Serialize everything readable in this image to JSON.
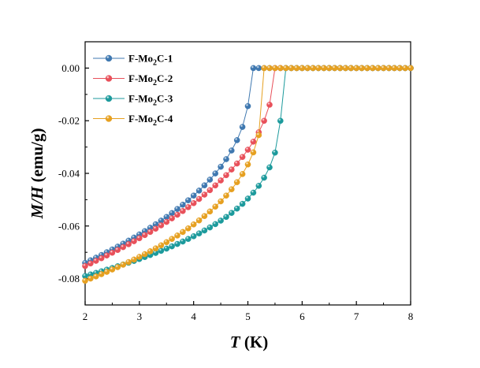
{
  "chart_data": {
    "type": "scatter",
    "xlabel": {
      "var": "T",
      "unit": " (K)"
    },
    "ylabel": {
      "var": "M/H",
      "unit": " (emu/g)"
    },
    "xlim": [
      2,
      8
    ],
    "ylim": [
      -0.09,
      0.01
    ],
    "xticks": [
      2,
      3,
      4,
      5,
      6,
      7,
      8
    ],
    "xtick_labels": [
      "2",
      "3",
      "4",
      "5",
      "6",
      "7",
      "8"
    ],
    "yticks": [
      0.0,
      -0.02,
      -0.04,
      -0.06,
      -0.08
    ],
    "ytick_labels": [
      "0.00",
      "-0.02",
      "-0.04",
      "-0.06",
      "-0.08"
    ],
    "legend_position": "top-left",
    "series": [
      {
        "name_main": "F-Mo",
        "name_sub": "2",
        "name_tail": "C-1",
        "color": "#3f78b0",
        "x_start": 2.0,
        "x_end": 8.0,
        "y_low": -0.074,
        "t_onset": 5.05,
        "slope_gamma": 1.3,
        "steepness": 1.8
      },
      {
        "name_main": "F-Mo",
        "name_sub": "2",
        "name_tail": "C-2",
        "color": "#e8505a",
        "x_start": 2.0,
        "x_end": 8.0,
        "y_low": -0.0752,
        "t_onset": 5.48,
        "slope_gamma": 1.3,
        "steepness": 1.6
      },
      {
        "name_main": "F-Mo",
        "name_sub": "2",
        "name_tail": "C-3",
        "color": "#1c9a9c",
        "x_start": 2.0,
        "x_end": 8.0,
        "y_low": -0.079,
        "t_onset": 5.62,
        "slope_gamma": 1.2,
        "steepness": 2.5
      },
      {
        "name_main": "F-Mo",
        "name_sub": "2",
        "name_tail": "C-4",
        "color": "#e6a020",
        "x_start": 2.0,
        "x_end": 8.0,
        "y_low": -0.0808,
        "t_onset": 5.3,
        "slope_gamma": 1.2,
        "steepness": 2.0
      }
    ]
  }
}
